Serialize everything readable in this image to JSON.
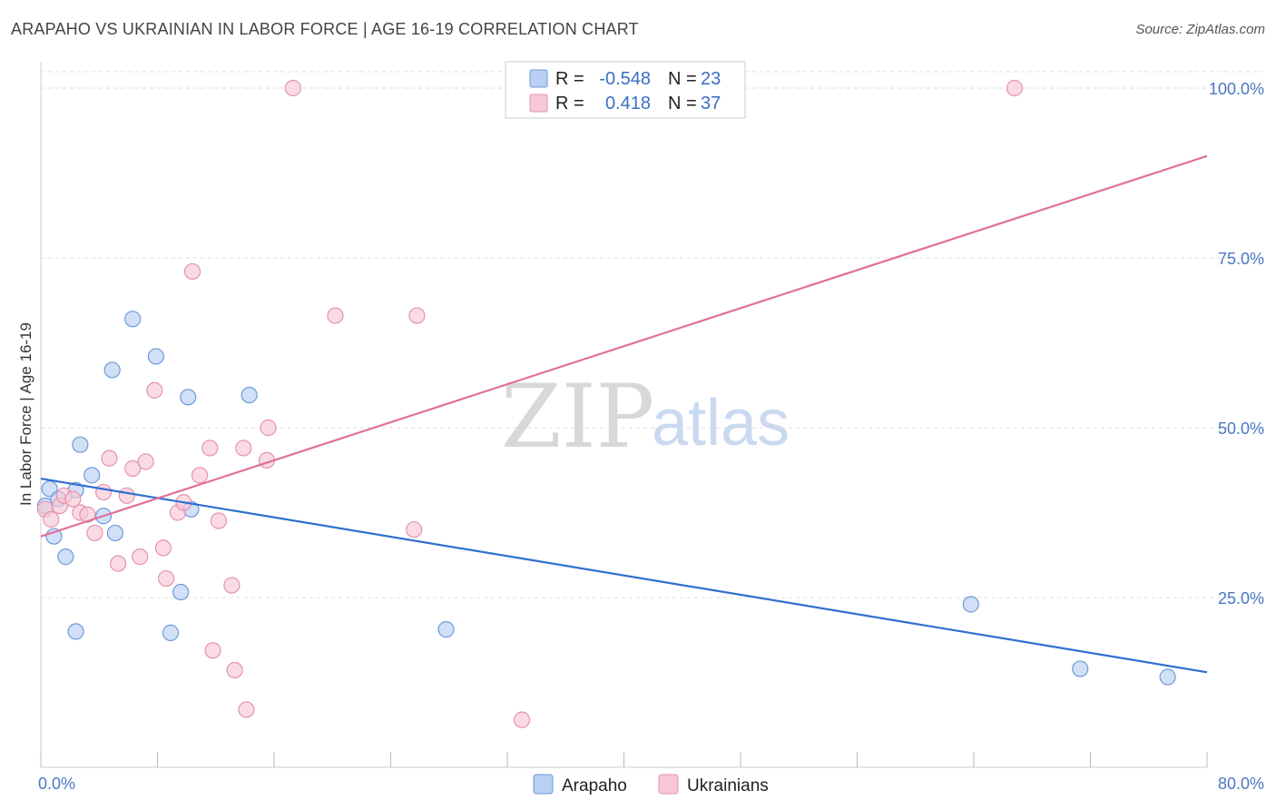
{
  "title": "ARAPAHO VS UKRAINIAN IN LABOR FORCE | AGE 16-19 CORRELATION CHART",
  "source": "Source: ZipAtlas.com",
  "watermark": {
    "part1": "ZIP",
    "part2": "atlas"
  },
  "colors": {
    "arapaho_fill": "#b8d0f3",
    "arapaho_stroke": "#6f9ad8",
    "arapaho_line": "#2f6fd0",
    "ukrainians_fill": "#f7c7d6",
    "ukrainians_stroke": "#e493ad",
    "ukrainians_line": "#e0709a",
    "grid": "#dddddd",
    "tick_text": "#4a78c0"
  },
  "chart_data": {
    "type": "scatter",
    "title": "ARAPAHO VS UKRAINIAN IN LABOR FORCE | AGE 16-19 CORRELATION CHART",
    "xlabel": "",
    "ylabel": "In Labor Force | Age 16-19",
    "xlim": [
      0,
      80
    ],
    "ylim": [
      0,
      100
    ],
    "x_tick_labels": {
      "min": "0.0%",
      "max": "80.0%"
    },
    "y_ticks": [
      {
        "value": 25,
        "label": "25.0%"
      },
      {
        "value": 50,
        "label": "50.0%"
      },
      {
        "value": 75,
        "label": "75.0%"
      },
      {
        "value": 100,
        "label": "100.0%"
      }
    ],
    "legend": [
      {
        "series": "Arapaho",
        "r_label": "R =",
        "r_value": "-0.548",
        "n_label": "N =",
        "n_value": "23"
      },
      {
        "series": "Ukrainians",
        "r_label": "R =",
        "r_value": "0.418",
        "n_label": "N =",
        "n_value": "37"
      }
    ],
    "series": [
      {
        "name": "Arapaho",
        "trend": {
          "x": [
            0,
            80
          ],
          "y": [
            42.5,
            14.0
          ]
        },
        "points": [
          {
            "x": 0.3,
            "y": 38.5
          },
          {
            "x": 0.6,
            "y": 41.0
          },
          {
            "x": 0.9,
            "y": 34.0
          },
          {
            "x": 1.2,
            "y": 39.5
          },
          {
            "x": 1.7,
            "y": 31.0
          },
          {
            "x": 2.4,
            "y": 40.8
          },
          {
            "x": 2.4,
            "y": 20.0
          },
          {
            "x": 2.7,
            "y": 47.5
          },
          {
            "x": 3.5,
            "y": 43.0
          },
          {
            "x": 4.3,
            "y": 37.0
          },
          {
            "x": 4.9,
            "y": 58.5
          },
          {
            "x": 5.1,
            "y": 34.5
          },
          {
            "x": 6.3,
            "y": 66.0
          },
          {
            "x": 7.9,
            "y": 60.5
          },
          {
            "x": 8.9,
            "y": 19.8
          },
          {
            "x": 9.6,
            "y": 25.8
          },
          {
            "x": 10.1,
            "y": 54.5
          },
          {
            "x": 10.3,
            "y": 38.0
          },
          {
            "x": 14.3,
            "y": 54.8
          },
          {
            "x": 27.8,
            "y": 20.3
          },
          {
            "x": 63.8,
            "y": 24.0
          },
          {
            "x": 71.3,
            "y": 14.5
          },
          {
            "x": 77.3,
            "y": 13.3
          }
        ]
      },
      {
        "name": "Ukrainians",
        "trend": {
          "x": [
            0,
            80
          ],
          "y": [
            34.0,
            90.0
          ]
        },
        "points": [
          {
            "x": 0.3,
            "y": 38.0
          },
          {
            "x": 0.7,
            "y": 36.5
          },
          {
            "x": 1.3,
            "y": 38.5
          },
          {
            "x": 1.6,
            "y": 40.0
          },
          {
            "x": 2.2,
            "y": 39.5
          },
          {
            "x": 2.7,
            "y": 37.5
          },
          {
            "x": 3.2,
            "y": 37.2
          },
          {
            "x": 3.7,
            "y": 34.5
          },
          {
            "x": 4.3,
            "y": 40.5
          },
          {
            "x": 4.7,
            "y": 45.5
          },
          {
            "x": 5.3,
            "y": 30.0
          },
          {
            "x": 5.9,
            "y": 40.0
          },
          {
            "x": 6.3,
            "y": 44.0
          },
          {
            "x": 6.8,
            "y": 31.0
          },
          {
            "x": 7.2,
            "y": 45.0
          },
          {
            "x": 7.8,
            "y": 55.5
          },
          {
            "x": 8.4,
            "y": 32.3
          },
          {
            "x": 8.6,
            "y": 27.8
          },
          {
            "x": 9.4,
            "y": 37.5
          },
          {
            "x": 9.8,
            "y": 39.0
          },
          {
            "x": 10.4,
            "y": 73.0
          },
          {
            "x": 10.9,
            "y": 43.0
          },
          {
            "x": 11.6,
            "y": 47.0
          },
          {
            "x": 11.8,
            "y": 17.2
          },
          {
            "x": 12.2,
            "y": 36.3
          },
          {
            "x": 13.1,
            "y": 26.8
          },
          {
            "x": 13.3,
            "y": 14.3
          },
          {
            "x": 13.9,
            "y": 47.0
          },
          {
            "x": 14.1,
            "y": 8.5
          },
          {
            "x": 15.5,
            "y": 45.2
          },
          {
            "x": 15.6,
            "y": 50.0
          },
          {
            "x": 17.3,
            "y": 100.0
          },
          {
            "x": 20.2,
            "y": 66.5
          },
          {
            "x": 25.6,
            "y": 35.0
          },
          {
            "x": 25.8,
            "y": 66.5
          },
          {
            "x": 33.0,
            "y": 7.0
          },
          {
            "x": 66.8,
            "y": 100.0
          }
        ]
      }
    ]
  }
}
